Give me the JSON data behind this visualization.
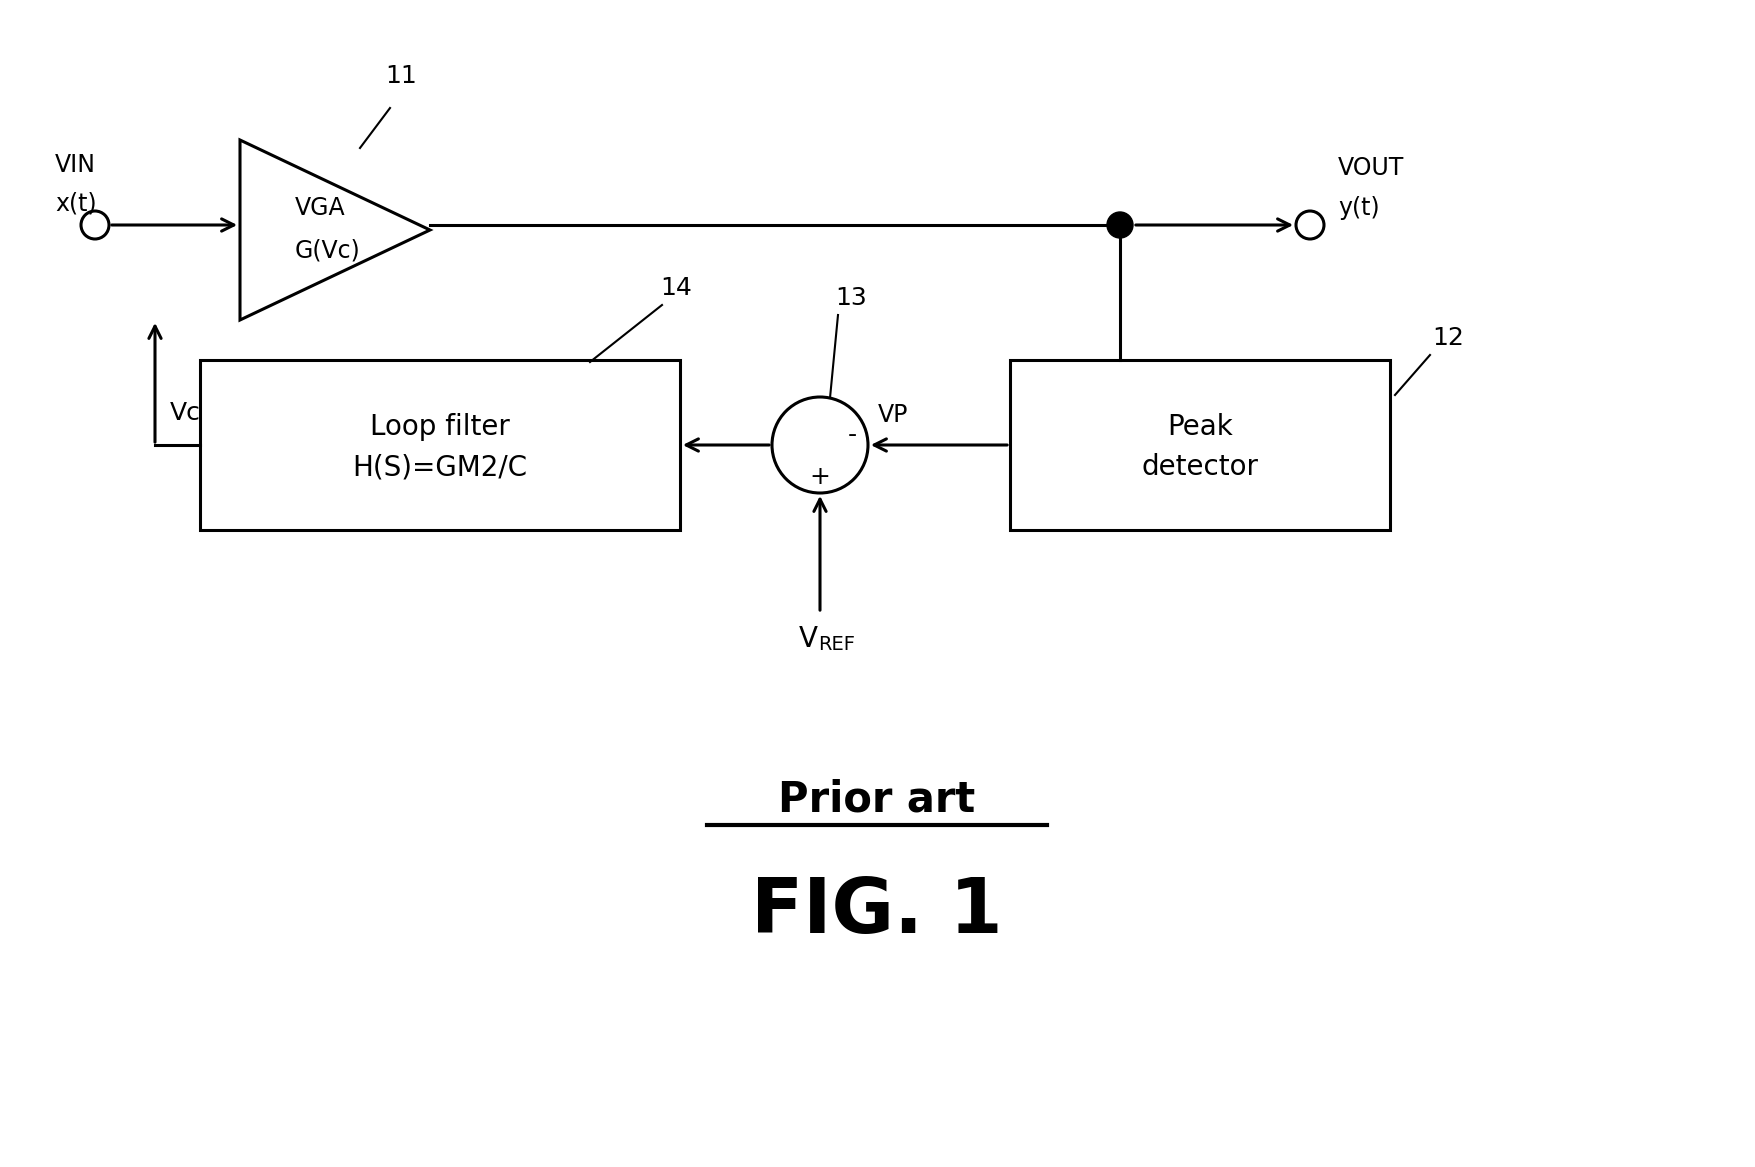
{
  "bg_color": "#ffffff",
  "line_color": "#000000",
  "line_width": 2.2,
  "fig_width": 17.55,
  "fig_height": 11.67,
  "dpi": 100,
  "title_text": "Prior art",
  "fig_label": "FIG. 1",
  "vin_label1": "VIN",
  "vin_label2": "x(t)",
  "vout_label1": "VOUT",
  "vout_label2": "y(t)",
  "vc_label": "Vc",
  "vp_label": "VP",
  "vga_label1": "VGA",
  "vga_label2": "G(Vc)",
  "loop_label1": "Loop filter",
  "loop_label2": "H(S)=GM2/C",
  "peak_label1": "Peak",
  "peak_label2": "detector",
  "num_11": "11",
  "num_12": "12",
  "num_13": "13",
  "num_14": "14",
  "minus_sign": "-",
  "plus_sign": "+"
}
